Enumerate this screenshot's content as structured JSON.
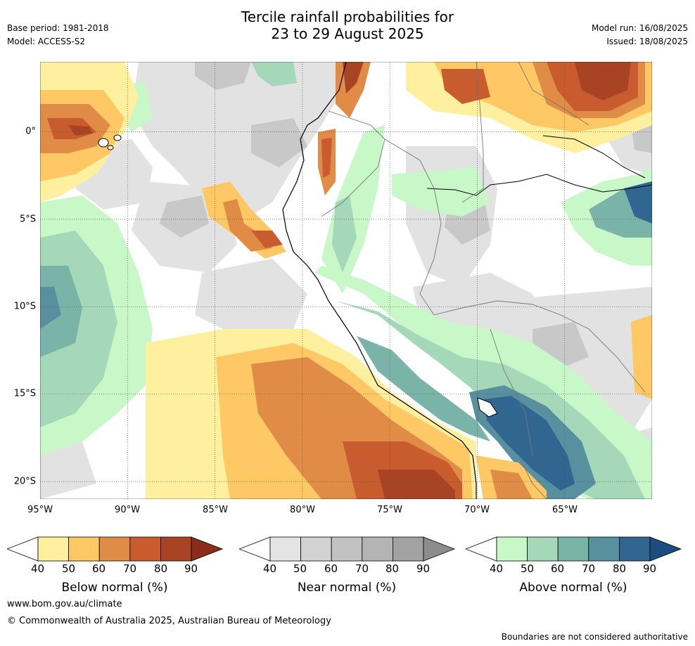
{
  "title_line1": "Tercile rainfall probabilities for",
  "title_line2": "23 to 29 August 2025",
  "base_period": "Base period: 1981-2018",
  "model": "Model: ACCESS-S2",
  "model_run": "Model run: 16/08/2025",
  "issued": "Issued: 18/08/2025",
  "map": {
    "lon_labels": [
      "95°W",
      "90°W",
      "85°W",
      "80°W",
      "75°W",
      "70°W",
      "65°W"
    ],
    "lat_labels": [
      "0°",
      "5°S",
      "10°S",
      "15°S",
      "20°S"
    ],
    "extent": {
      "lon_min": -95,
      "lon_max": -60,
      "lat_min": -21,
      "lat_max": 4
    }
  },
  "colorbars": [
    {
      "name": "below",
      "title": "Below normal (%)",
      "ticks": [
        "40",
        "50",
        "60",
        "70",
        "80",
        "90"
      ],
      "colors": [
        "#fff0a0",
        "#fec864",
        "#e08c46",
        "#c85c2e",
        "#a84424",
        "#8b2c1a"
      ]
    },
    {
      "name": "near",
      "title": "Near normal (%)",
      "ticks": [
        "40",
        "50",
        "60",
        "70",
        "80",
        "90"
      ],
      "colors": [
        "#e4e4e4",
        "#d2d2d2",
        "#c2c2c2",
        "#b4b4b4",
        "#a2a2a2",
        "#8c8c8c"
      ]
    },
    {
      "name": "above",
      "title": "Above normal (%)",
      "ticks": [
        "40",
        "50",
        "60",
        "70",
        "80",
        "90"
      ],
      "colors": [
        "#c8f8c8",
        "#a4d8b8",
        "#7ab4a8",
        "#5890a0",
        "#306690",
        "#1a4e80"
      ]
    }
  ],
  "footer": {
    "url": "www.bom.gov.au/climate",
    "copyright": "© Commonwealth of Australia 2025, Australian Bureau of Meteorology",
    "disclaimer": "Boundaries are not considered authoritative"
  }
}
